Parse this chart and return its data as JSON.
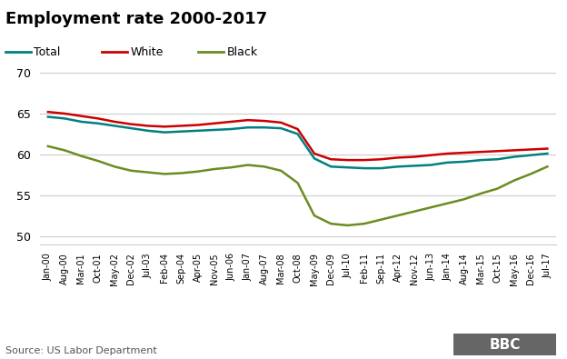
{
  "title": "Employment rate 2000-2017",
  "source": "Source: US Labor Department",
  "colors": {
    "total": "#008080",
    "white": "#cc0000",
    "black": "#6b8c21"
  },
  "ylim": [
    49,
    71
  ],
  "yticks": [
    50,
    55,
    60,
    65,
    70
  ],
  "x_labels": [
    "Jan-00",
    "Aug-00",
    "Mar-01",
    "Oct-01",
    "May-02",
    "Dec-02",
    "Jul-03",
    "Feb-04",
    "Sep-04",
    "Apr-05",
    "Nov-05",
    "Jun-06",
    "Jan-07",
    "Aug-07",
    "Mar-08",
    "Oct-08",
    "May-09",
    "Dec-09",
    "Jul-10",
    "Feb-11",
    "Sep-11",
    "Apr-12",
    "Nov-12",
    "Jun-13",
    "Jan-14",
    "Aug-14",
    "Mar-15",
    "Oct-15",
    "May-16",
    "Dec-16",
    "Jul-17"
  ],
  "total": [
    64.6,
    64.4,
    64.0,
    63.8,
    63.5,
    63.2,
    62.9,
    62.7,
    62.8,
    62.9,
    63.0,
    63.1,
    63.3,
    63.3,
    63.2,
    62.5,
    59.5,
    58.5,
    58.4,
    58.3,
    58.3,
    58.5,
    58.6,
    58.7,
    59.0,
    59.1,
    59.3,
    59.4,
    59.7,
    59.9,
    60.1
  ],
  "white": [
    65.2,
    65.0,
    64.7,
    64.4,
    64.0,
    63.7,
    63.5,
    63.4,
    63.5,
    63.6,
    63.8,
    64.0,
    64.2,
    64.1,
    63.9,
    63.1,
    60.1,
    59.4,
    59.3,
    59.3,
    59.4,
    59.6,
    59.7,
    59.9,
    60.1,
    60.2,
    60.3,
    60.4,
    60.5,
    60.6,
    60.7
  ],
  "black": [
    61.0,
    60.5,
    59.8,
    59.2,
    58.5,
    58.0,
    57.8,
    57.6,
    57.7,
    57.9,
    58.2,
    58.4,
    58.7,
    58.5,
    58.0,
    56.5,
    52.5,
    51.5,
    51.3,
    51.5,
    52.0,
    52.5,
    53.0,
    53.5,
    54.0,
    54.5,
    55.2,
    55.8,
    56.8,
    57.6,
    58.5
  ]
}
